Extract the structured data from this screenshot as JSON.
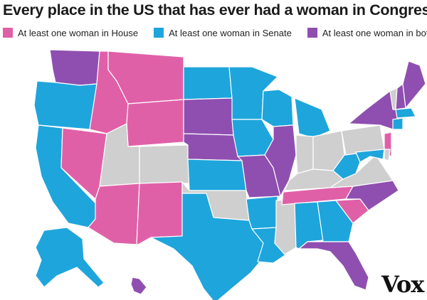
{
  "title": "Every place in the US that has ever had a woman in Congress",
  "legend": [
    {
      "label": "At least one woman in House",
      "color": "#e060a8"
    },
    {
      "label": "At least one woman in Senate",
      "color": "#1ea5dc"
    },
    {
      "label": "At least one woman in both",
      "color": "#8f4fb0"
    }
  ],
  "colors": {
    "house": "#e060a8",
    "senate": "#1ea5dc",
    "both": "#8f4fb0",
    "none": "#cfcfcf",
    "border": "#ffffff"
  },
  "states": {
    "WA": "both",
    "OR": "senate",
    "CA": "senate",
    "NV": "house",
    "ID": "house",
    "MT": "house",
    "WY": "house",
    "UT": "none",
    "CO": "none",
    "AZ": "house",
    "NM": "house",
    "ND": "senate",
    "SD": "both",
    "NE": "both",
    "KS": "senate",
    "OK": "none",
    "TX": "senate",
    "MN": "senate",
    "IA": "senate",
    "MO": "both",
    "AR": "senate",
    "LA": "senate",
    "WI": "senate",
    "IL": "both",
    "MS": "none",
    "MI": "senate",
    "IN": "none",
    "OH": "none",
    "KY": "none",
    "TN": "house",
    "AL": "senate",
    "GA": "senate",
    "FL": "both",
    "SC": "house",
    "NC": "both",
    "VA": "none",
    "WV": "senate",
    "PA": "none",
    "NY": "both",
    "VT": "none",
    "NH": "both",
    "ME": "both",
    "MA": "senate",
    "CT": "senate",
    "NJ": "house",
    "MD": "senate",
    "DE": "none",
    "AK": "senate",
    "HI": "both"
  },
  "logo": "Vox"
}
